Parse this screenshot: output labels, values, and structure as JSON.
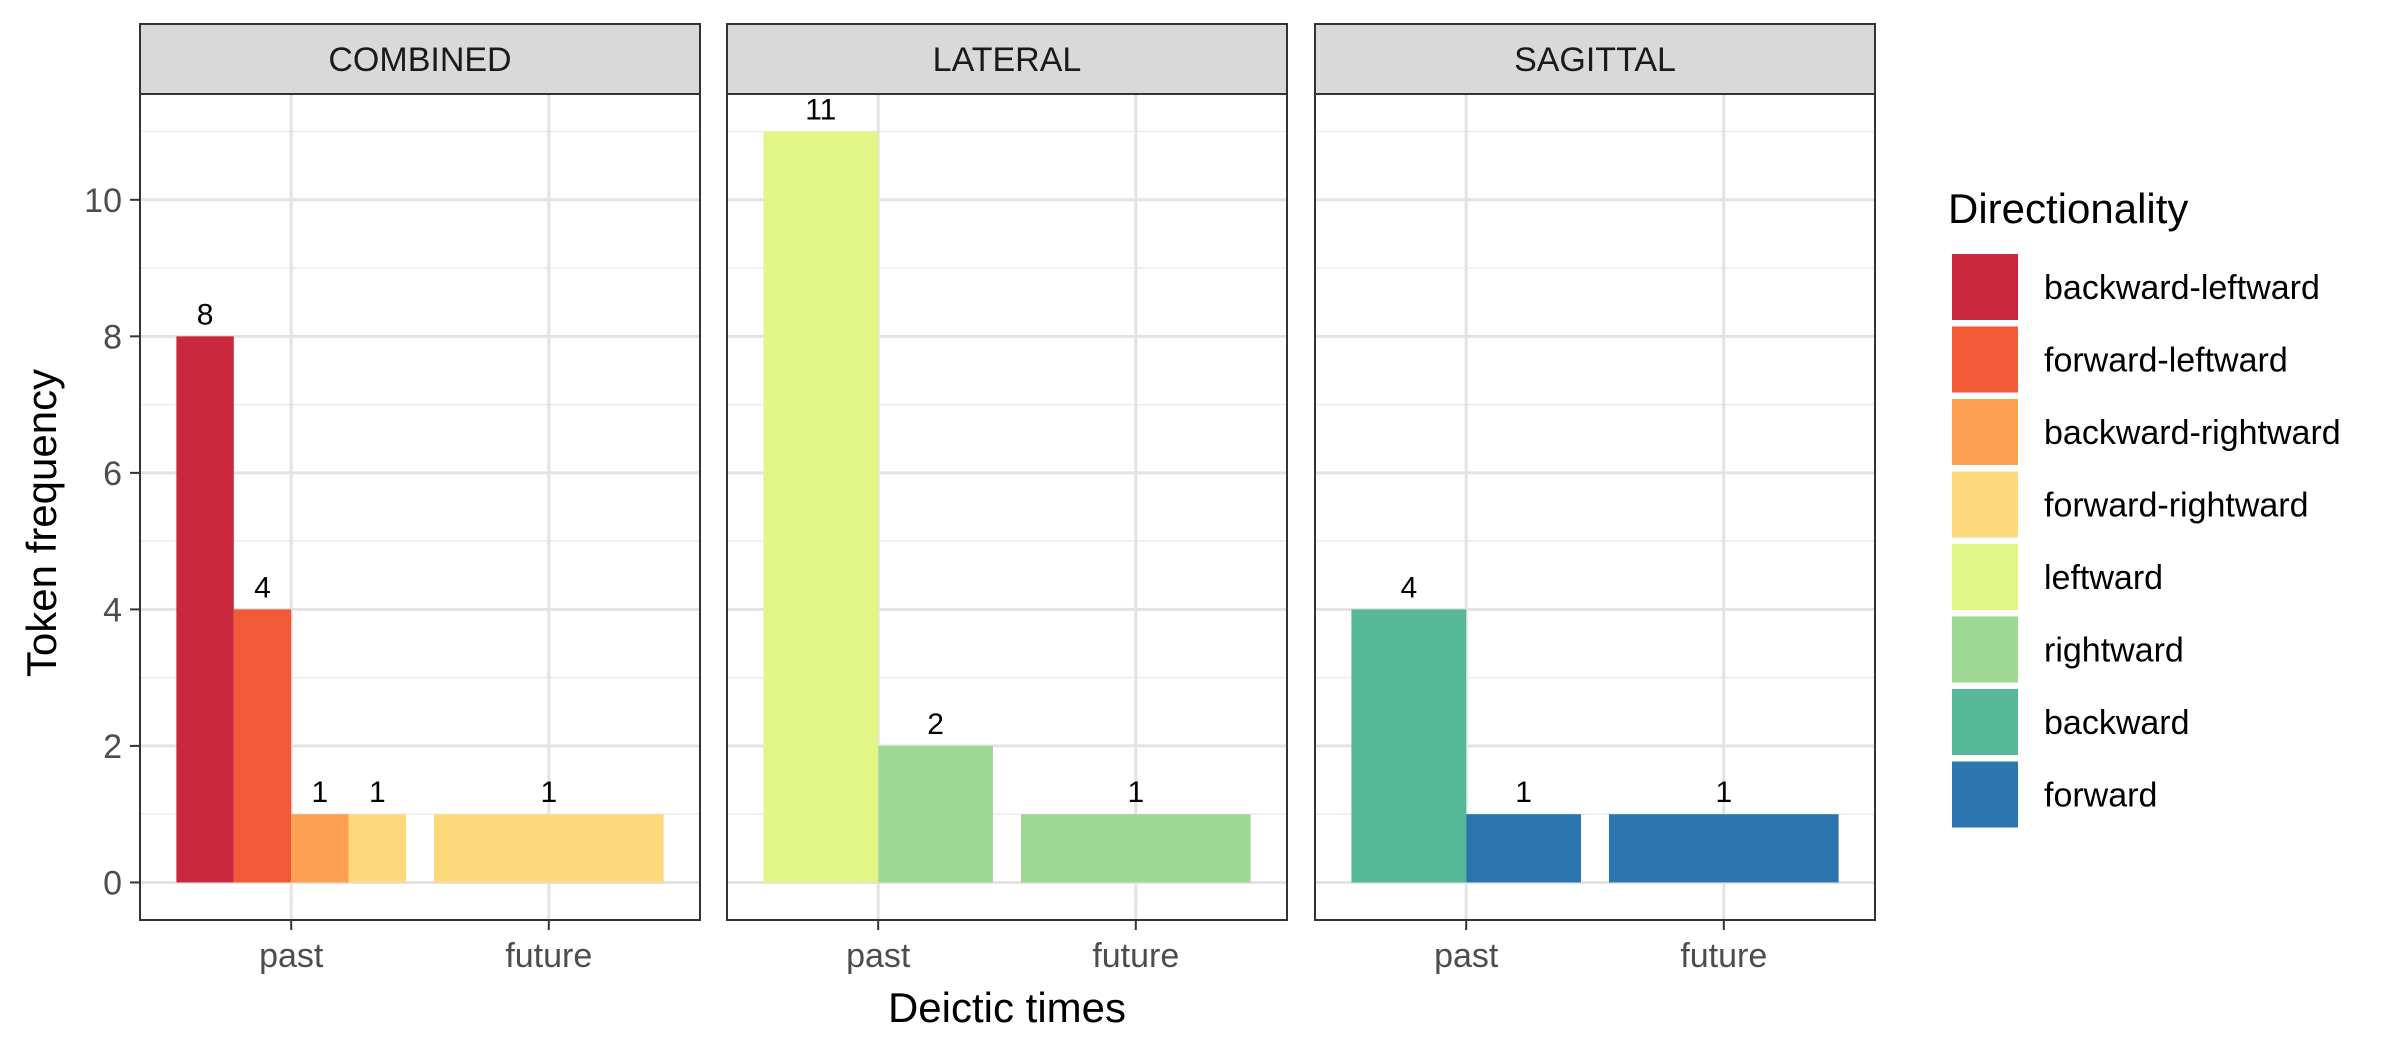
{
  "chart_data": {
    "type": "bar",
    "facets": [
      {
        "name": "COMBINED",
        "bars": [
          {
            "x": "past",
            "series": "backward-leftward",
            "value": 8
          },
          {
            "x": "past",
            "series": "forward-leftward",
            "value": 4
          },
          {
            "x": "past",
            "series": "backward-rightward",
            "value": 1
          },
          {
            "x": "past",
            "series": "forward-rightward",
            "value": 1
          },
          {
            "x": "future",
            "series": "forward-rightward",
            "value": 1
          }
        ]
      },
      {
        "name": "LATERAL",
        "bars": [
          {
            "x": "past",
            "series": "leftward",
            "value": 11
          },
          {
            "x": "past",
            "series": "rightward",
            "value": 2
          },
          {
            "x": "future",
            "series": "rightward",
            "value": 1
          }
        ]
      },
      {
        "name": "SAGITTAL",
        "bars": [
          {
            "x": "past",
            "series": "backward",
            "value": 4
          },
          {
            "x": "past",
            "series": "forward",
            "value": 1
          },
          {
            "x": "future",
            "series": "forward",
            "value": 1
          }
        ]
      }
    ],
    "categories": [
      "past",
      "future"
    ],
    "xlabel": "Deictic times",
    "ylabel": "Token frequency",
    "ylim": [
      -0.55,
      11.55
    ],
    "yticks": [
      0,
      2,
      4,
      6,
      8,
      10
    ],
    "grid": true,
    "legend": {
      "title": "Directionality",
      "position": "right",
      "items": [
        {
          "label": "backward-leftward",
          "color": "#C9283E"
        },
        {
          "label": "forward-leftward",
          "color": "#F05A35"
        },
        {
          "label": "backward-rightward",
          "color": "#FCA152"
        },
        {
          "label": "forward-rightward",
          "color": "#FDD97B"
        },
        {
          "label": "leftward",
          "color": "#E1F686"
        },
        {
          "label": "rightward",
          "color": "#9ED993"
        },
        {
          "label": "backward",
          "color": "#56B897"
        },
        {
          "label": "forward",
          "color": "#2C76B0"
        }
      ]
    }
  }
}
